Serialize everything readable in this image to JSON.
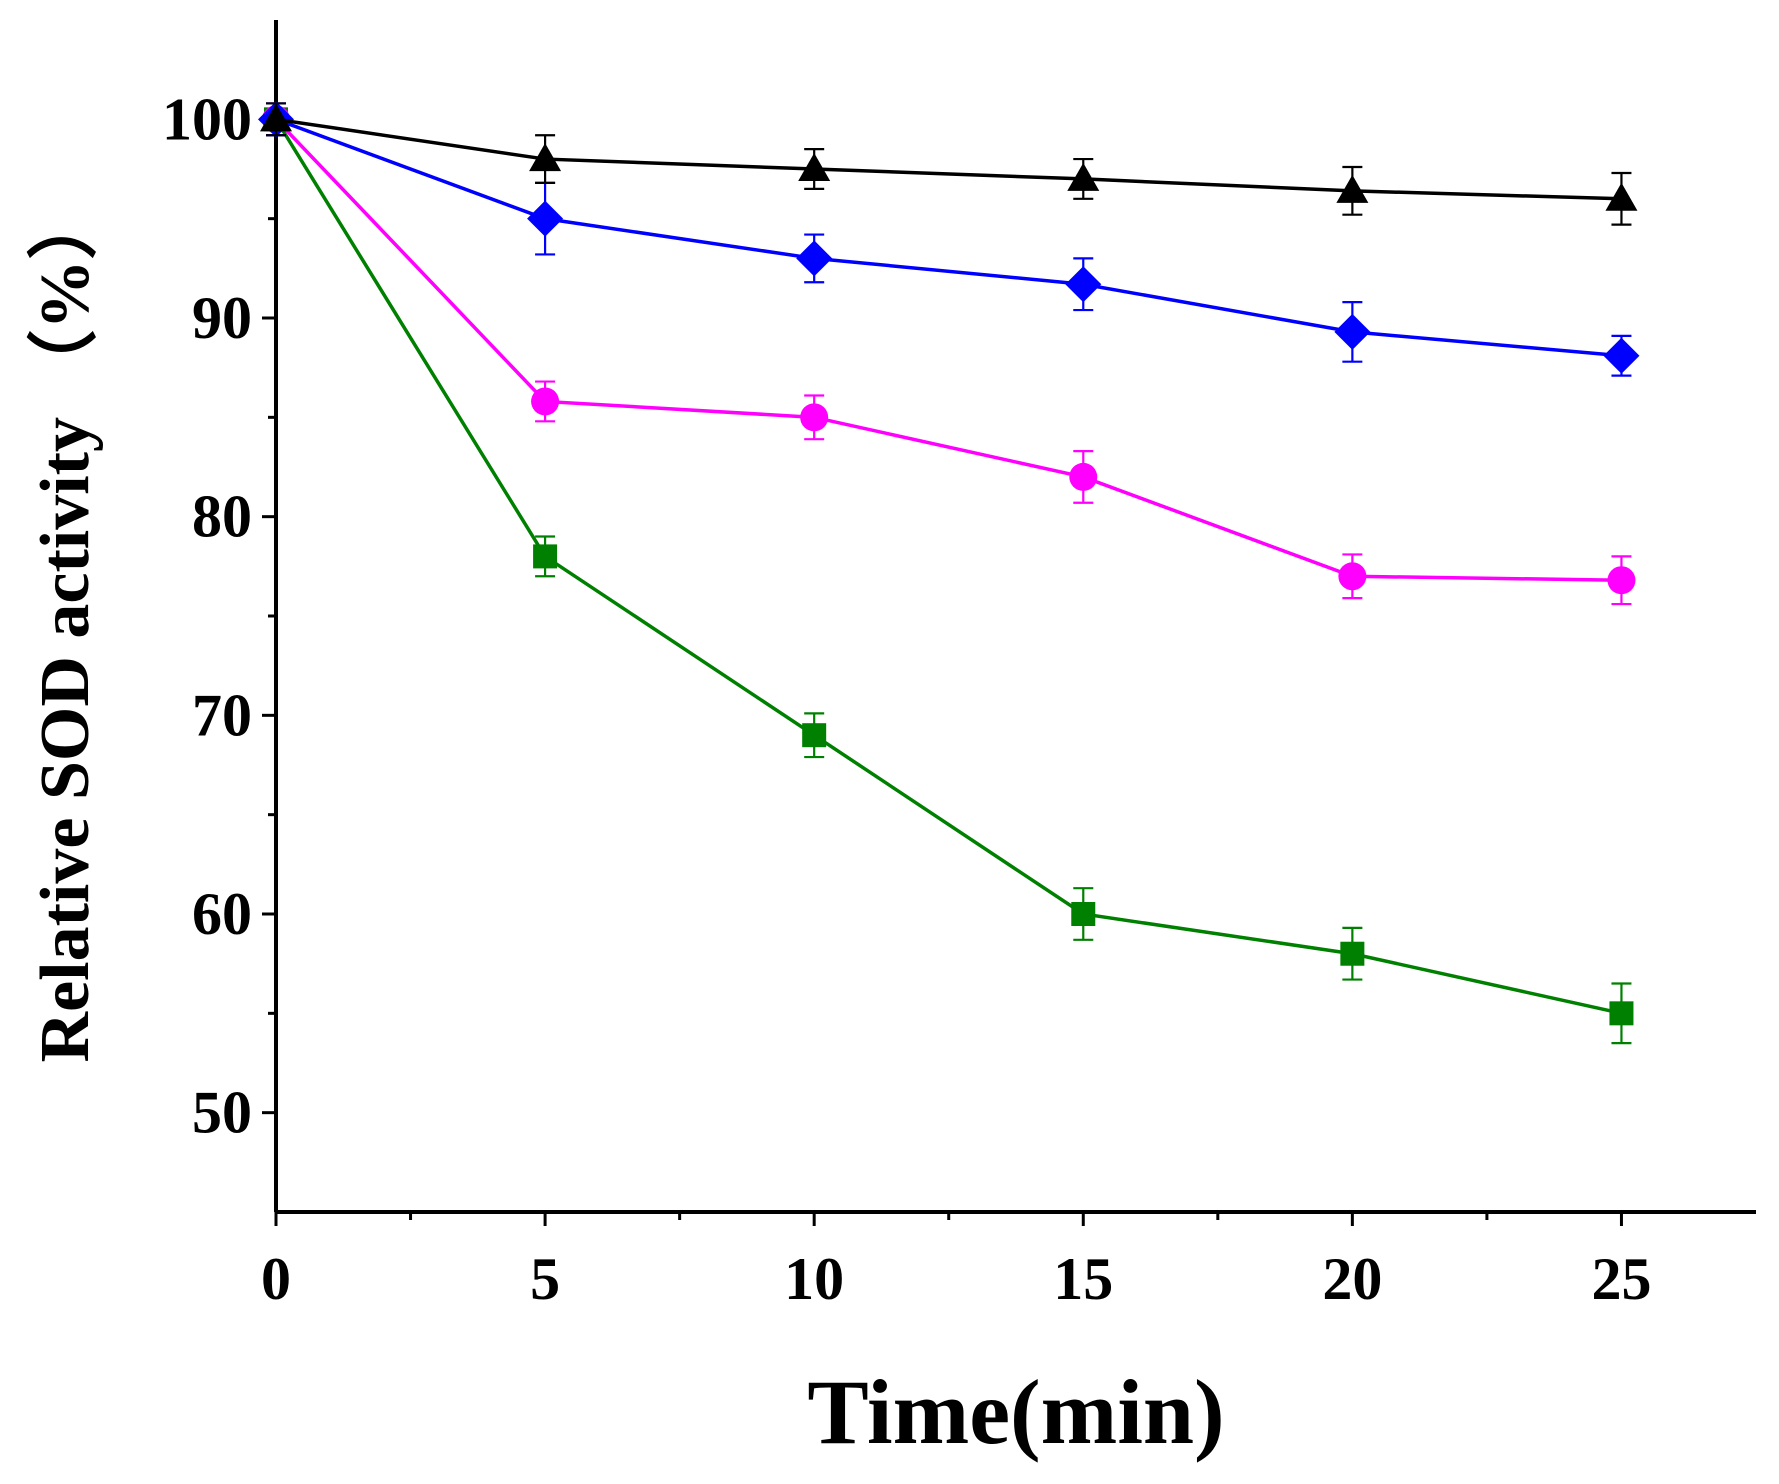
{
  "chart_data": {
    "type": "line",
    "title": "",
    "xlabel": "Time(min)",
    "ylabel": "Relative SOD activity （%）",
    "xlim": [
      0,
      27.5
    ],
    "ylim": [
      45,
      105
    ],
    "x_ticks": [
      0,
      5,
      10,
      15,
      20,
      25
    ],
    "x_minor_ticks": [
      2.5,
      7.5,
      12.5,
      17.5,
      22.5
    ],
    "y_ticks": [
      50,
      60,
      70,
      80,
      90,
      100
    ],
    "y_minor_ticks": [
      55,
      65,
      75,
      85,
      95
    ],
    "x_tick_labels": [
      "0",
      "5",
      "10",
      "15",
      "20",
      "25"
    ],
    "y_tick_labels": [
      "50",
      "60",
      "70",
      "80",
      "90",
      "100"
    ],
    "grid": false,
    "legend": "none",
    "x": [
      0,
      5,
      10,
      15,
      20,
      25
    ],
    "series": [
      {
        "name": "black-triangle",
        "marker": "triangle",
        "color": "#000000",
        "values": [
          100,
          98,
          97.5,
          97,
          96.4,
          96
        ],
        "errors": [
          0.8,
          1.2,
          1.0,
          1.0,
          1.2,
          1.3
        ]
      },
      {
        "name": "blue-diamond",
        "marker": "diamond",
        "color": "#0000ff",
        "values": [
          100,
          95,
          93,
          91.7,
          89.3,
          88.1
        ],
        "errors": [
          0.8,
          1.8,
          1.2,
          1.3,
          1.5,
          1.0
        ]
      },
      {
        "name": "magenta-circle",
        "marker": "circle",
        "color": "#ff00ff",
        "values": [
          100,
          85.8,
          85,
          82,
          77,
          76.8
        ],
        "errors": [
          0.8,
          1.0,
          1.1,
          1.3,
          1.1,
          1.2
        ]
      },
      {
        "name": "green-square",
        "marker": "square",
        "color": "#008000",
        "values": [
          100,
          78,
          69,
          60,
          58,
          55
        ],
        "errors": [
          0.8,
          1.0,
          1.1,
          1.3,
          1.3,
          1.5
        ]
      }
    ]
  }
}
